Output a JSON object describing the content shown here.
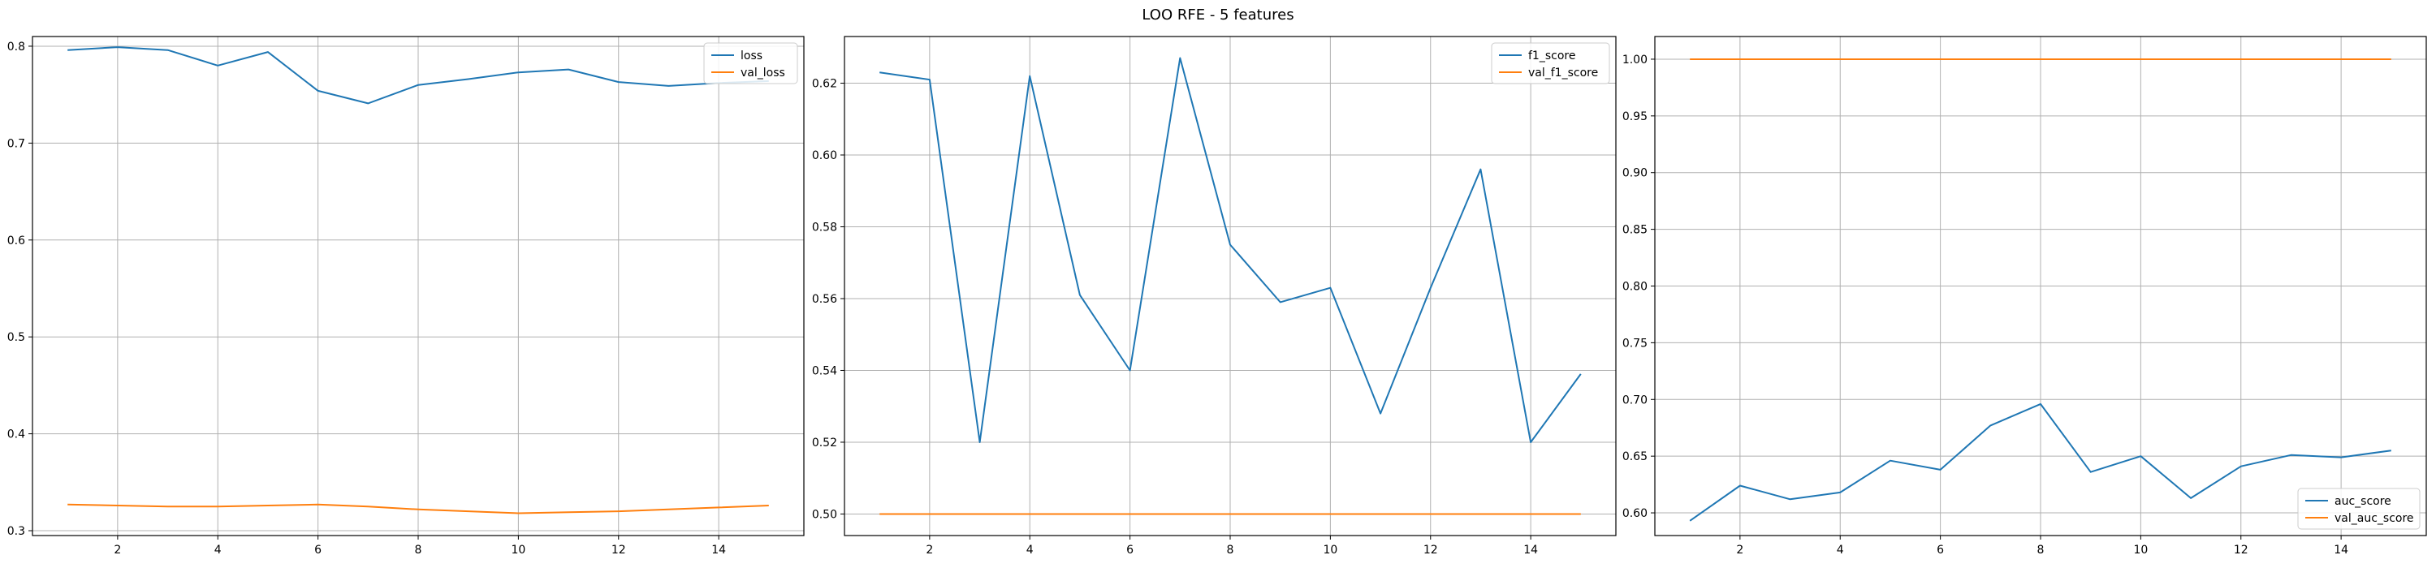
{
  "figure": {
    "title": "LOO RFE - 5 features"
  },
  "colors": {
    "train": "#1f77b4",
    "val": "#ff7f0e",
    "grid": "#b0b0b0",
    "axis": "#000000"
  },
  "chart_data": [
    {
      "type": "line",
      "title": "",
      "xlabel": "",
      "ylabel": "",
      "xlim": [
        0.3,
        15.7
      ],
      "ylim": [
        0.295,
        0.81
      ],
      "xticks": [
        2,
        4,
        6,
        8,
        10,
        12,
        14
      ],
      "yticks": [
        0.3,
        0.4,
        0.5,
        0.6,
        0.7,
        0.8
      ],
      "ytick_labels": [
        "0.3",
        "0.4",
        "0.5",
        "0.6",
        "0.7",
        "0.8"
      ],
      "grid": true,
      "legend_position": "top-right",
      "x": [
        1,
        2,
        3,
        4,
        5,
        6,
        7,
        8,
        9,
        10,
        11,
        12,
        13,
        14,
        15
      ],
      "series": [
        {
          "name": "loss",
          "color_key": "train",
          "values": [
            0.796,
            0.799,
            0.796,
            0.78,
            0.794,
            0.754,
            0.741,
            0.76,
            0.766,
            0.773,
            0.776,
            0.763,
            0.759,
            0.762,
            0.764
          ]
        },
        {
          "name": "val_loss",
          "color_key": "val",
          "values": [
            0.327,
            0.326,
            0.325,
            0.325,
            0.326,
            0.327,
            0.325,
            0.322,
            0.32,
            0.318,
            0.319,
            0.32,
            0.322,
            0.324,
            0.326
          ]
        }
      ]
    },
    {
      "type": "line",
      "title": "",
      "xlabel": "",
      "ylabel": "",
      "xlim": [
        0.3,
        15.7
      ],
      "ylim": [
        0.494,
        0.633
      ],
      "xticks": [
        2,
        4,
        6,
        8,
        10,
        12,
        14
      ],
      "yticks": [
        0.5,
        0.52,
        0.54,
        0.56,
        0.58,
        0.6,
        0.62
      ],
      "ytick_labels": [
        "0.50",
        "0.52",
        "0.54",
        "0.56",
        "0.58",
        "0.60",
        "0.62"
      ],
      "grid": true,
      "legend_position": "top-right",
      "x": [
        1,
        2,
        3,
        4,
        5,
        6,
        7,
        8,
        9,
        10,
        11,
        12,
        13,
        14,
        15
      ],
      "series": [
        {
          "name": "f1_score",
          "color_key": "train",
          "values": [
            0.623,
            0.621,
            0.52,
            0.622,
            0.561,
            0.54,
            0.627,
            0.575,
            0.559,
            0.563,
            0.528,
            0.563,
            0.596,
            0.52,
            0.539
          ]
        },
        {
          "name": "val_f1_score",
          "color_key": "val",
          "values": [
            0.5,
            0.5,
            0.5,
            0.5,
            0.5,
            0.5,
            0.5,
            0.5,
            0.5,
            0.5,
            0.5,
            0.5,
            0.5,
            0.5,
            0.5
          ]
        }
      ]
    },
    {
      "type": "line",
      "title": "",
      "xlabel": "",
      "ylabel": "",
      "xlim": [
        0.3,
        15.7
      ],
      "ylim": [
        0.58,
        1.02
      ],
      "xticks": [
        2,
        4,
        6,
        8,
        10,
        12,
        14
      ],
      "yticks": [
        0.6,
        0.65,
        0.7,
        0.75,
        0.8,
        0.85,
        0.9,
        0.95,
        1.0
      ],
      "ytick_labels": [
        "0.60",
        "0.65",
        "0.70",
        "0.75",
        "0.80",
        "0.85",
        "0.90",
        "0.95",
        "1.00"
      ],
      "grid": true,
      "legend_position": "bottom-right",
      "x": [
        1,
        2,
        3,
        4,
        5,
        6,
        7,
        8,
        9,
        10,
        11,
        12,
        13,
        14,
        15
      ],
      "series": [
        {
          "name": "auc_score",
          "color_key": "train",
          "values": [
            0.593,
            0.624,
            0.612,
            0.618,
            0.646,
            0.638,
            0.677,
            0.696,
            0.636,
            0.65,
            0.613,
            0.641,
            0.651,
            0.649,
            0.655
          ]
        },
        {
          "name": "val_auc_score",
          "color_key": "val",
          "values": [
            1.0,
            1.0,
            1.0,
            1.0,
            1.0,
            1.0,
            1.0,
            1.0,
            1.0,
            1.0,
            1.0,
            1.0,
            1.0,
            1.0,
            1.0
          ]
        }
      ]
    }
  ]
}
